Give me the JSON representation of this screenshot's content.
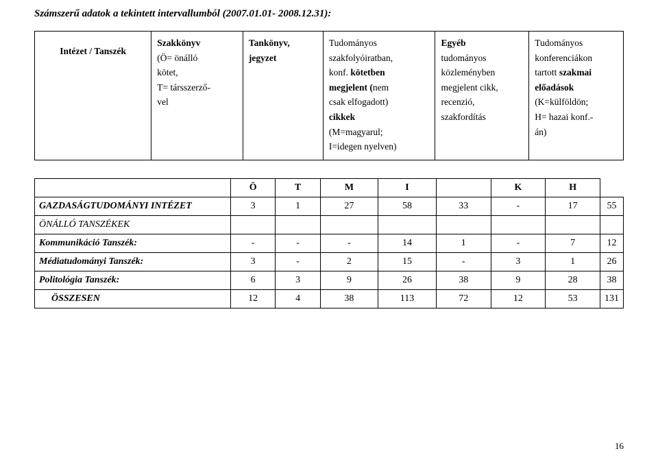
{
  "title": "Számszerű adatok a tekintett intervallumból (2007.01.01- 2008.12.31):",
  "header": {
    "col1": "Intézet / Tanszék",
    "col2": {
      "l1": "Szakkönyv",
      "l2": "(Ö= önálló",
      "l3": "kötet,",
      "l4": "T= társszerző-",
      "l5": "vel"
    },
    "col3": {
      "l1": "Tankönyv,",
      "l2": "jegyzet"
    },
    "col4": {
      "l1": "Tudományos",
      "l2": "szakfolyóiratban,",
      "l3a": "konf. ",
      "l3b": "kötetben",
      "l4a": "megjelent (",
      "l4b": "nem",
      "l5": "csak elfogadott)",
      "l6": "cikkek",
      "l7": "(M=magyarul;",
      "l8": "I=idegen nyelven)"
    },
    "col5": {
      "l1": "Egyéb",
      "l2": "tudományos",
      "l3": "közleményben",
      "l4": "megjelent cikk,",
      "l5": "recenzió,",
      "l6": "szakfordítás"
    },
    "col6": {
      "l1": "Tudományos",
      "l2": "konferenciákon",
      "l3a": "tartott ",
      "l3b": "szakmai",
      "l4": "előadások",
      "l5": "(K=külföldön;",
      "l6": "H= hazai konf.-",
      "l7": "án)"
    }
  },
  "cols": {
    "c2": "Ö",
    "c3": "T",
    "c4": "M",
    "c5": "I",
    "c6": "K",
    "c7": "H"
  },
  "rows": [
    {
      "label": "GAZDASÁGTUDOMÁNYI INTÉZET",
      "style": "bolditalic",
      "indent": false,
      "v": [
        "3",
        "1",
        "27",
        "58",
        "33",
        "-",
        "17",
        "55"
      ]
    },
    {
      "label": "ÖNÁLLÓ TANSZÉKEK",
      "style": "italic",
      "indent": false,
      "v": [
        "",
        "",
        "",
        "",
        "",
        "",
        "",
        ""
      ]
    },
    {
      "label": "Kommunikáció Tanszék:",
      "style": "bolditalic",
      "indent": false,
      "v": [
        "-",
        "-",
        "-",
        "14",
        "1",
        "-",
        "7",
        "12"
      ]
    },
    {
      "label": "Médiatudományi Tanszék:",
      "style": "bolditalic",
      "indent": false,
      "v": [
        "3",
        "-",
        "2",
        "15",
        "-",
        "3",
        "1",
        "26"
      ]
    },
    {
      "label": "Politológia Tanszék:",
      "style": "bolditalic",
      "indent": false,
      "v": [
        "6",
        "3",
        "9",
        "26",
        "38",
        "9",
        "28",
        "38"
      ]
    },
    {
      "label": "ÖSSZESEN",
      "style": "bolditalic",
      "indent": true,
      "v": [
        "12",
        "4",
        "38",
        "113",
        "72",
        "12",
        "53",
        "131"
      ]
    }
  ],
  "pageNumber": "16"
}
